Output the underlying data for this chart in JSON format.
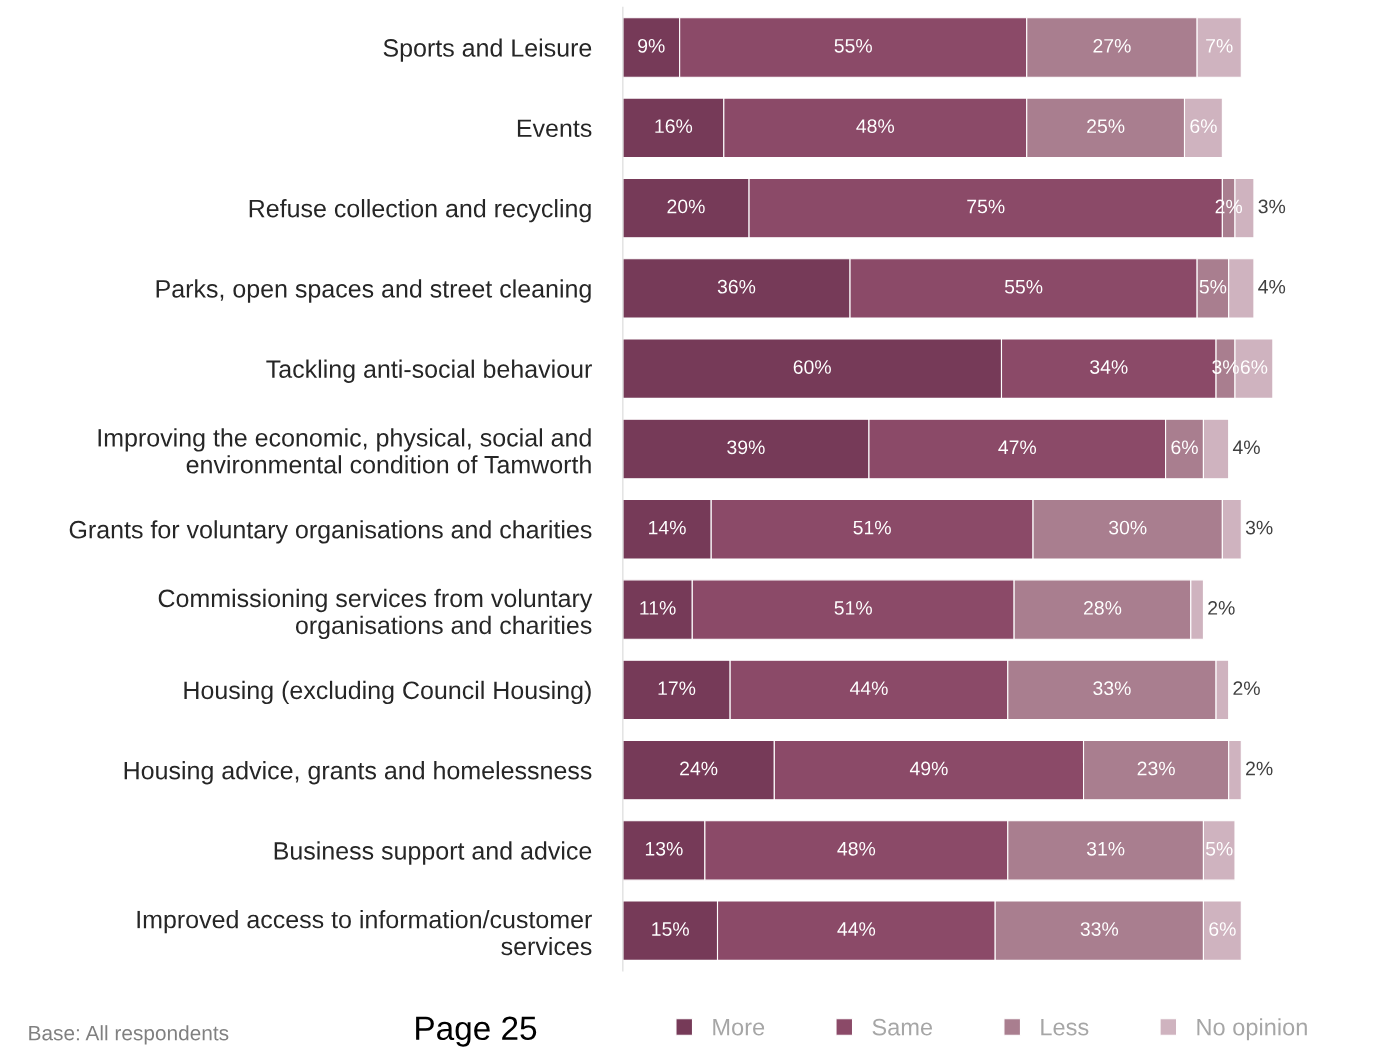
{
  "chart_data": {
    "type": "bar",
    "orientation": "horizontal",
    "stacked": true,
    "categories": [
      "Sports and Leisure",
      "Events",
      "Refuse collection and recycling",
      "Parks, open spaces and street cleaning",
      "Tackling anti-social behaviour",
      "Improving the economic, physical, social and\nenvironmental condition of Tamworth",
      "Grants for voluntary organisations and charities",
      "Commissioning services from voluntary\norganisations and charities",
      "Housing (excluding Council Housing)",
      "Housing advice, grants and homelessness",
      "Business support and advice",
      "Improved access to information/customer\nservices"
    ],
    "series": [
      {
        "name": "More",
        "color": "#763a58",
        "values": [
          9,
          16,
          20,
          36,
          60,
          39,
          14,
          11,
          17,
          24,
          13,
          15
        ],
        "value_labels": [
          "9%",
          "16%",
          "20%",
          "36%",
          "60%",
          "39%",
          "14%",
          "11%",
          "17%",
          "24%",
          "13%",
          "15%"
        ]
      },
      {
        "name": "Same",
        "color": "#8b4a68",
        "values": [
          55,
          48,
          75,
          55,
          34,
          47,
          51,
          51,
          44,
          49,
          48,
          44
        ],
        "value_labels": [
          "55%",
          "48%",
          "75%",
          "55%",
          "34%",
          "47%",
          "51%",
          "51%",
          "44%",
          "49%",
          "48%",
          "44%"
        ]
      },
      {
        "name": "Less",
        "color": "#a97e8f",
        "values": [
          27,
          25,
          2,
          5,
          3,
          6,
          30,
          28,
          33,
          23,
          31,
          33
        ],
        "value_labels": [
          "27%",
          "25%",
          "2%",
          "5%",
          "3%",
          "6%",
          "30%",
          "28%",
          "33%",
          "23%",
          "31%",
          "33%"
        ]
      },
      {
        "name": "No opinion",
        "color": "#cfb3bf",
        "values": [
          7,
          6,
          3,
          4,
          6,
          4,
          3,
          2,
          2,
          2,
          5,
          6
        ],
        "value_labels": [
          "7%",
          "6%",
          "3%",
          "4%",
          "6%",
          "4%",
          "3%",
          "2%",
          "2%",
          "2%",
          "5%",
          "6%"
        ]
      }
    ],
    "legend": "bottom",
    "grid": false,
    "annotations": [
      "Base: All respondents",
      "Page 25"
    ]
  }
}
